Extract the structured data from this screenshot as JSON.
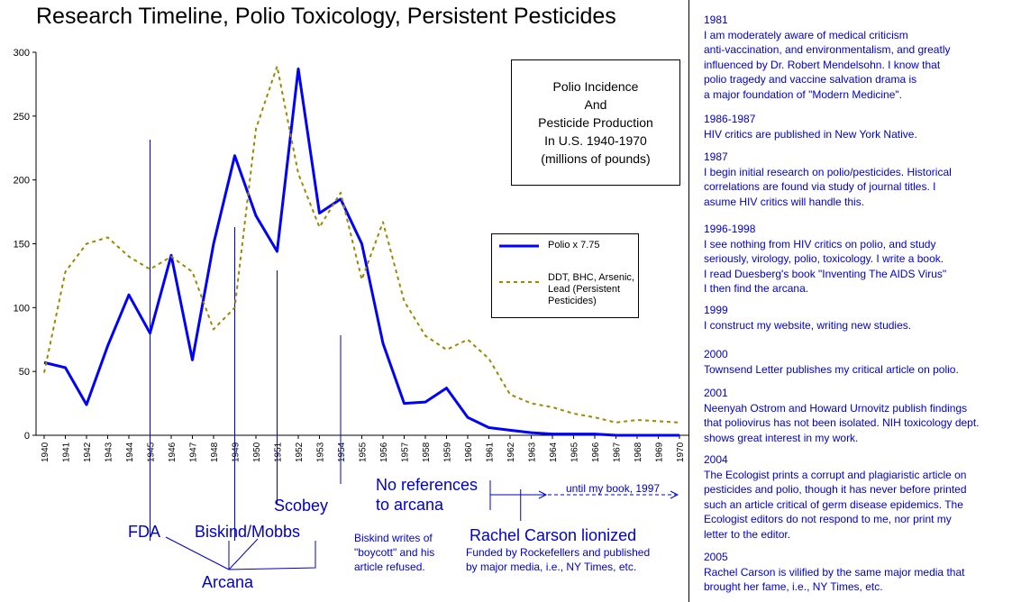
{
  "title": "Research Timeline, Polio Toxicology, Persistent Pesticides",
  "inset_title": "Polio Incidence\nAnd\nPesticide Production\nIn U.S. 1940-1970\n(millions of pounds)",
  "chart_data": {
    "type": "line",
    "title": "Polio Incidence And Pesticide Production In U.S. 1940-1970 (millions of pounds)",
    "xlabel": "",
    "ylabel": "",
    "ylim": [
      0,
      300
    ],
    "yticks": [
      0,
      50,
      100,
      150,
      200,
      250,
      300
    ],
    "grid": false,
    "legend_position": "right",
    "x": [
      1940,
      1941,
      1942,
      1943,
      1944,
      1945,
      1946,
      1947,
      1948,
      1949,
      1950,
      1951,
      1952,
      1953,
      1954,
      1955,
      1956,
      1957,
      1958,
      1959,
      1960,
      1961,
      1962,
      1963,
      1964,
      1965,
      1966,
      1967,
      1968,
      1969,
      1970
    ],
    "x_plot_order": [
      1940,
      1941,
      1942,
      1943,
      1944,
      1945,
      1946,
      1947,
      1948,
      1949,
      1950,
      1951,
      1952,
      1953,
      1954,
      1955,
      1956,
      1957,
      1958,
      1959,
      1960,
      1961,
      1962,
      1963,
      1964,
      1965,
      1966,
      1967,
      1968,
      1969,
      1970
    ],
    "series": [
      {
        "name": "Polio x 7.75",
        "color": "#0000ff",
        "style": "solid",
        "values": [
          57,
          53,
          24,
          70,
          110,
          80,
          141,
          59,
          150,
          219,
          172,
          144,
          287,
          174,
          185,
          150,
          72,
          25,
          26,
          37,
          14,
          6,
          4,
          2,
          1,
          1,
          1,
          0,
          0,
          0,
          0
        ]
      },
      {
        "name": "DDT, BHC, Arsenic, Lead (Persistent Pesticides)",
        "color": "#998a00",
        "style": "dashed",
        "values": [
          49,
          128,
          150,
          155,
          140,
          130,
          140,
          128,
          83,
          100,
          240,
          289,
          205,
          163,
          190,
          122,
          167,
          105,
          78,
          67,
          75,
          60,
          32,
          25,
          22,
          17,
          14,
          10,
          12,
          11,
          10
        ]
      }
    ],
    "markers": [
      {
        "year": 1945,
        "label": "FDA"
      },
      {
        "year": 1949,
        "label": "Biskind/Mobbs"
      },
      {
        "year": 1951,
        "label": "Scobey"
      },
      {
        "year": 1954,
        "label": ""
      },
      {
        "year": 1962.5,
        "label": ""
      }
    ]
  },
  "annotations": {
    "fda": "FDA",
    "biskind_mobbs": "Biskind/Mobbs",
    "scobey": "Scobey",
    "arcana": "Arcana",
    "no_references": "No references\nto arcana",
    "until_book": "until my book, 1997",
    "rachel_carson": "Rachel Carson lionized",
    "biskind_note": "Biskind writes of\n\"boycott\" and his\narticle refused.",
    "funded_note": "Funded by Rockefellers and published\nby major media, i.e., NY Times, etc."
  },
  "timeline": [
    {
      "year": "1981",
      "text": "I am moderately aware of medical criticism\nanti-vaccination, and environmentalism, and greatly\ninfluenced by Dr. Robert Mendelsohn.  I know that\npolio tragedy and vaccine salvation drama is\na major foundation of \"Modern Medicine\"."
    },
    {
      "year": "1986-1987",
      "text": "HIV critics are published in New York Native."
    },
    {
      "year": "1987",
      "text": "I begin initial research on polio/pesticides.  Historical\ncorrelations are found via study of journal titles.  I\nasume HIV critics will handle this."
    },
    {
      "year": "1996-1998",
      "text": "I see nothing from HIV critics on polio, and study\nseriously, virology, polio, toxicology.  I write a book.\nI read Duesberg's book \"Inventing The AIDS Virus\"\nI then find the arcana."
    },
    {
      "year": "1999",
      "text": "I construct my website, writing new studies."
    },
    {
      "year": "2000",
      "text": "Townsend Letter publishes my critical article on polio."
    },
    {
      "year": "2001",
      "text": "Neenyah Ostrom and Howard Urnovitz publish findings\nthat poliovirus has not been isolated.  NIH toxicology dept.\nshows great interest in my work."
    },
    {
      "year": "2004",
      "text": "The Ecologist prints a corrupt and plagiaristic article on\npesticides and polio, though it has never before printed\nsuch an article critical of germ disease epidemics.  The\nEcologist editors do not respond to me, nor print my\nletter to the editor."
    },
    {
      "year": "2005",
      "text": "Rachel Carson is vilified by the same major media that\nbrought her fame, i.e., NY Times, etc."
    }
  ]
}
